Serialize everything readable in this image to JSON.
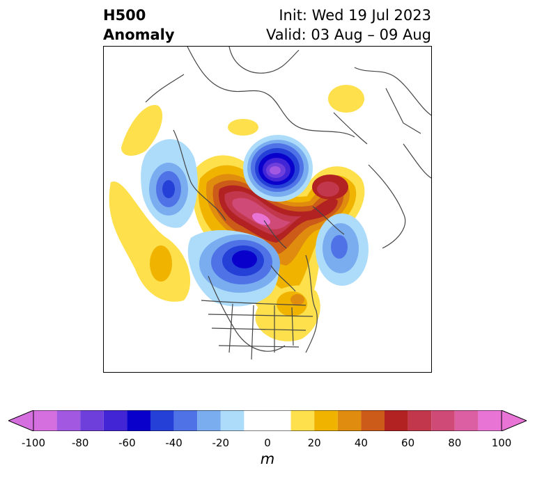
{
  "title": {
    "main": [
      "H500",
      "Anomaly"
    ],
    "init": "Init: Wed 19 Jul 2023",
    "valid": "Valid: 03 Aug – 09 Aug"
  },
  "colorbar": {
    "unit": "m",
    "ticks": [
      "-100",
      "-80",
      "-60",
      "-40",
      "-20",
      "0",
      "20",
      "40",
      "60",
      "80",
      "100"
    ],
    "levels": [
      -100,
      -90,
      -80,
      -70,
      -60,
      -50,
      -40,
      -30,
      -20,
      -10,
      10,
      20,
      30,
      40,
      50,
      60,
      70,
      80,
      90,
      100
    ],
    "colors": [
      "#d56fe0",
      "#a258e0",
      "#6f3fdb",
      "#4226d6",
      "#0a00cc",
      "#2540d6",
      "#4f73e6",
      "#7aacf0",
      "#addcfb",
      "#ffffff",
      "#fde04c",
      "#f0b400",
      "#e08c0e",
      "#cc5a18",
      "#b22222",
      "#c2374c",
      "#d04a78",
      "#dd5fa3",
      "#e874d6"
    ]
  },
  "map_layers": {
    "negative_colors": [
      "#addcfb",
      "#7aacf0",
      "#4f73e6",
      "#2540d6",
      "#0a00cc",
      "#4226d6",
      "#6f3fdb",
      "#a258e0"
    ],
    "positive_colors": [
      "#fde04c",
      "#f0b400",
      "#e08c0e",
      "#cc5a18",
      "#b22222",
      "#c2374c",
      "#d04a78",
      "#dd5fa3",
      "#e874d6"
    ],
    "border_color": "#444444"
  }
}
